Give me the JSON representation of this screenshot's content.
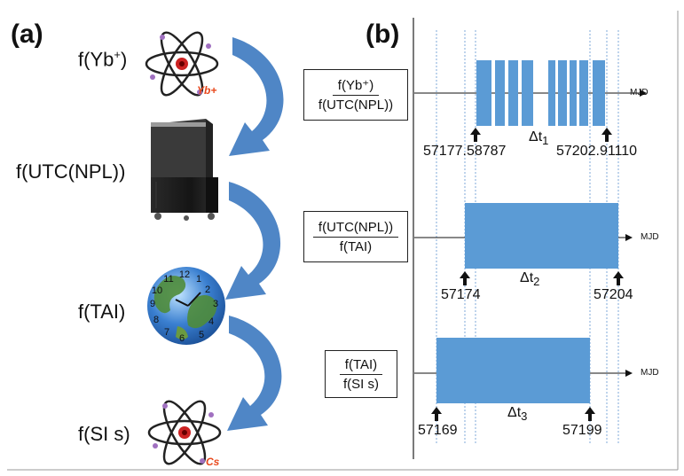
{
  "panels": {
    "a_label": "(a)",
    "b_label": "(b)"
  },
  "chain": [
    {
      "label_base": "f(Yb",
      "label_sup": "+",
      "label_tail": ")",
      "icon": "atom-icon",
      "icon_tag": "Yb+"
    },
    {
      "label": "f(UTC(NPL))",
      "icon": "maser-cabinet-icon"
    },
    {
      "label": "f(TAI)",
      "icon": "globe-clock-icon",
      "clock_numbers": [
        "12",
        "1",
        "2",
        "3",
        "4",
        "5",
        "6",
        "7",
        "8",
        "9",
        "10",
        "11"
      ]
    },
    {
      "label": "f(SI s)",
      "icon": "atom-icon",
      "icon_tag": "Cs"
    }
  ],
  "rows": [
    {
      "num": "f(Yb⁺)",
      "den": "f(UTC(NPL))",
      "axis": "MJD",
      "start_date": "57177.58787",
      "end_date": "57202.91110",
      "delta_base": "Δt",
      "delta_sub": "1"
    },
    {
      "num": "f(UTC(NPL))",
      "den": "f(TAI)",
      "axis": "MJD",
      "start_date": "57174",
      "end_date": "57204",
      "delta_base": "Δt",
      "delta_sub": "2"
    },
    {
      "num": "f(TAI)",
      "den": "f(SI s)",
      "axis": "MJD",
      "start_date": "57169",
      "end_date": "57199",
      "delta_base": "Δt",
      "delta_sub": "3"
    }
  ],
  "colors": {
    "bar": "#5b9bd5",
    "arrow": "#4f86c6",
    "dashed": "#7fa9d9"
  }
}
